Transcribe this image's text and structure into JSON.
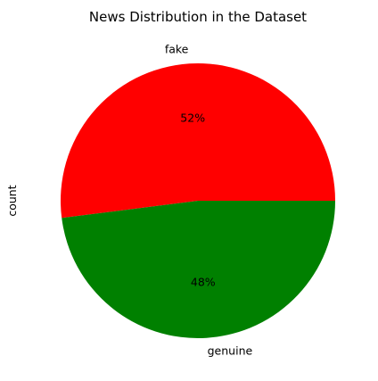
{
  "chart_data": {
    "type": "pie",
    "title": "News Distribution in the Dataset",
    "ylabel": "count",
    "labels": [
      "fake",
      "genuine"
    ],
    "values": [
      52,
      48
    ],
    "percent_labels": [
      "52%",
      "48%"
    ],
    "colors": [
      "#ff0000",
      "#008000"
    ]
  }
}
